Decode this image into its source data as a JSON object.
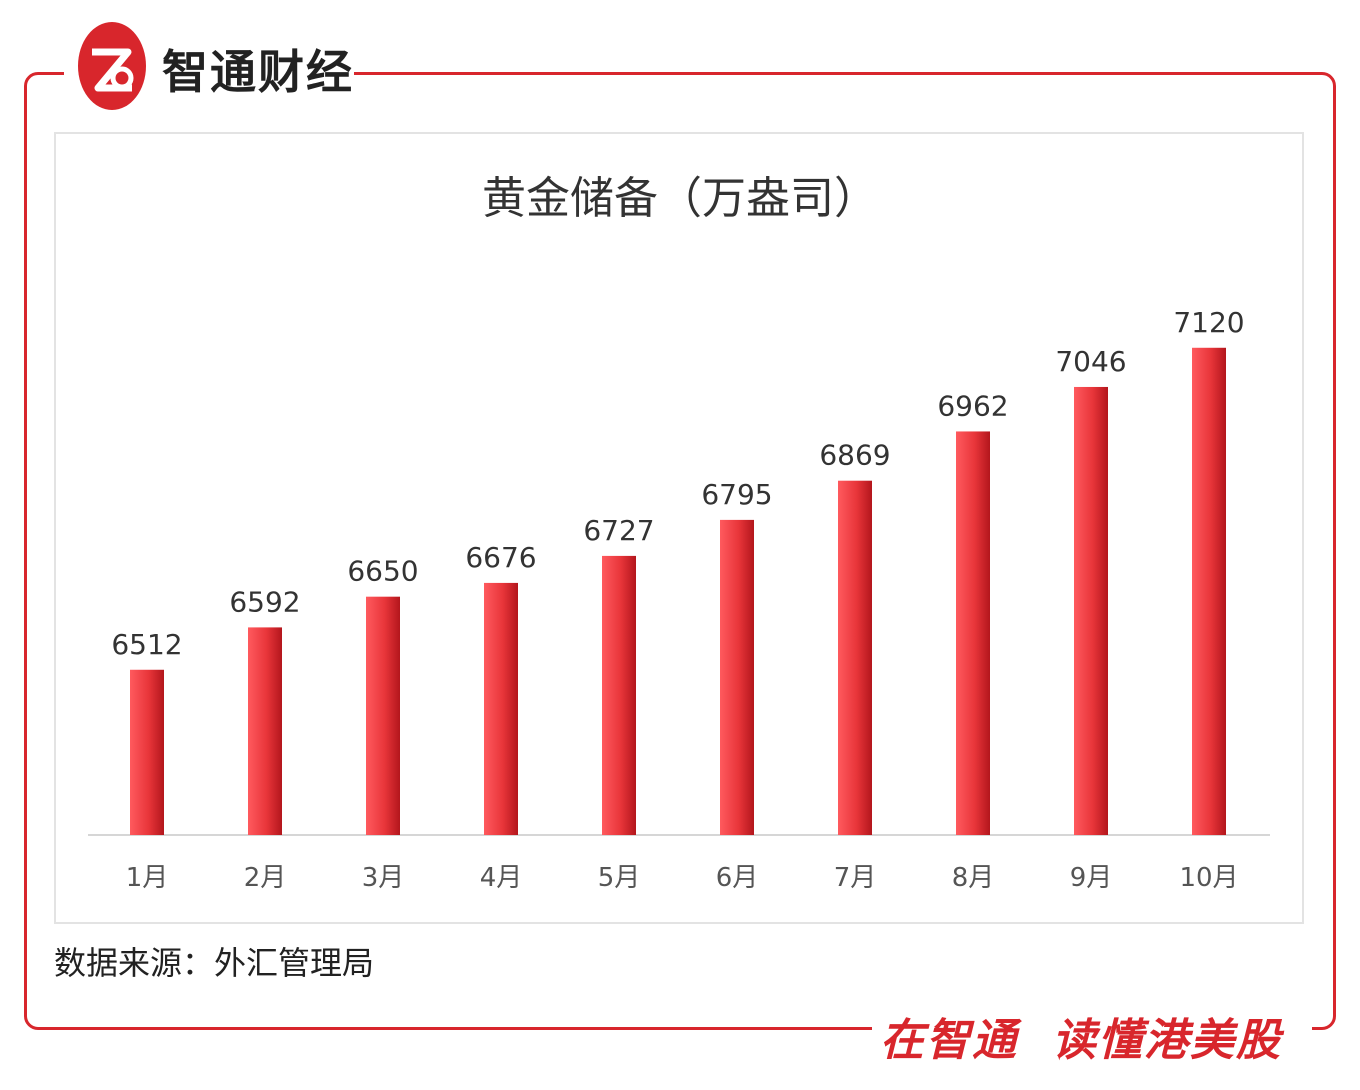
{
  "brand": {
    "name": "智通财经"
  },
  "footer": {
    "source": "数据来源：外汇管理局",
    "slogan_left": "在智通",
    "slogan_right": "读懂港美股"
  },
  "colors": {
    "accent": "#d8262c",
    "bar": "#e8353a",
    "bar_shade": "#b3161c"
  },
  "chart_data": {
    "type": "bar",
    "title": "黄金储备（万盎司）",
    "categories": [
      "1月",
      "2月",
      "3月",
      "4月",
      "5月",
      "6月",
      "7月",
      "8月",
      "9月",
      "10月"
    ],
    "values": [
      6512,
      6592,
      6650,
      6676,
      6727,
      6795,
      6869,
      6962,
      7046,
      7120
    ],
    "ylim": [
      6200,
      7180
    ],
    "grid": false,
    "legend": "none",
    "xlabel": "",
    "ylabel": ""
  }
}
